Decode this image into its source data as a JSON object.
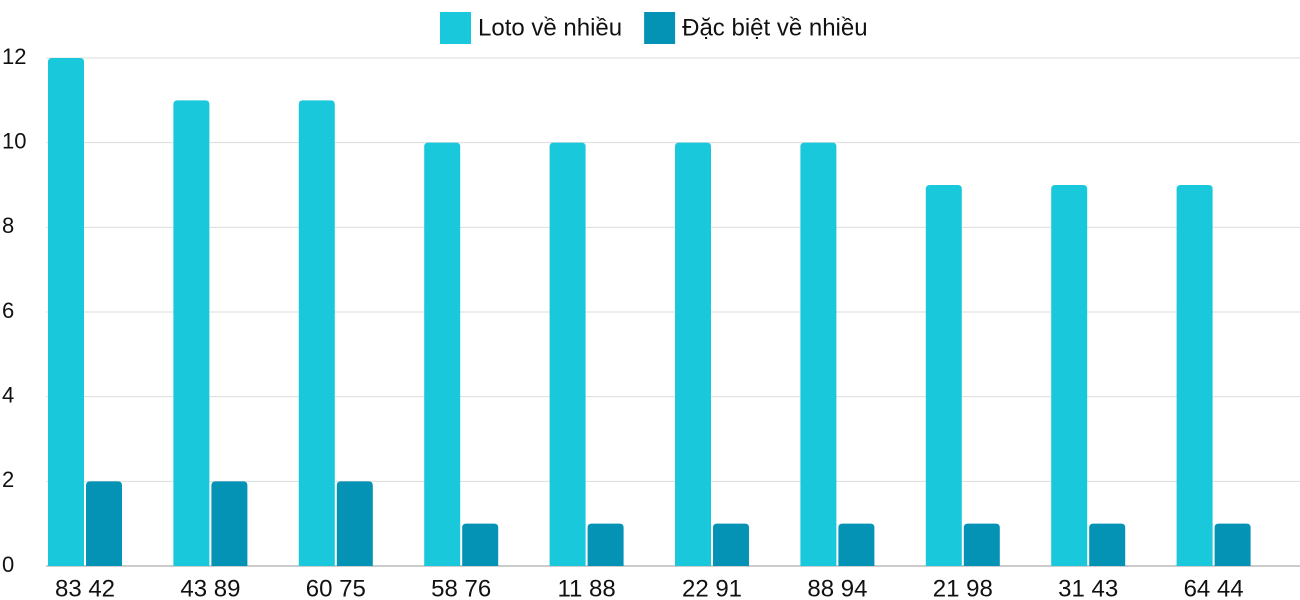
{
  "chart_data": {
    "type": "bar",
    "categories": [
      "83 42",
      "43 89",
      "60 75",
      "58 76",
      "11 88",
      "22 91",
      "88 94",
      "21 98",
      "31 43",
      "64 44"
    ],
    "series": [
      {
        "name": "Loto về nhiều",
        "color": "#1ac8dc",
        "values": [
          12,
          11,
          11,
          10,
          10,
          10,
          10,
          9,
          9,
          9
        ]
      },
      {
        "name": "Đặc biệt về nhiều",
        "color": "#0593b5",
        "values": [
          2,
          2,
          2,
          1,
          1,
          1,
          1,
          1,
          1,
          1
        ]
      }
    ],
    "ylim": [
      0,
      12
    ],
    "yticks": [
      0,
      2,
      4,
      6,
      8,
      10,
      12
    ],
    "grid": true,
    "legend": "top"
  }
}
